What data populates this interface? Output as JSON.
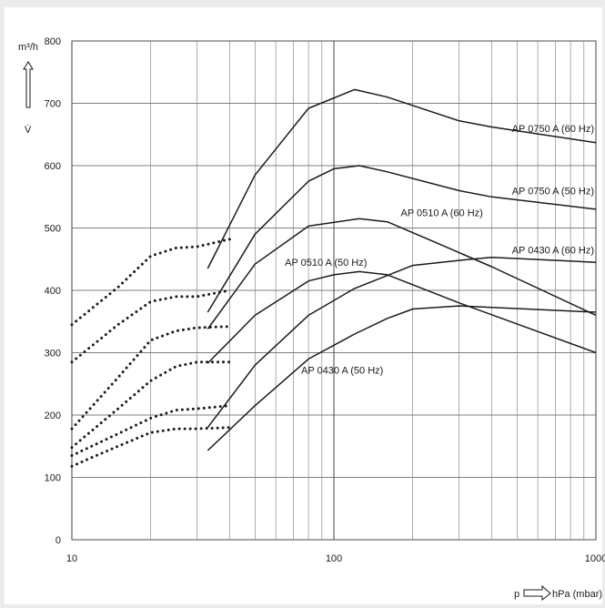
{
  "chart_data": {
    "type": "line",
    "xscale": "log",
    "xlim": [
      10,
      1000
    ],
    "ylim": [
      0,
      800
    ],
    "xticks": [
      10,
      100,
      1000
    ],
    "yticks": [
      0,
      100,
      200,
      300,
      400,
      500,
      600,
      700,
      800
    ],
    "xlabel": "p",
    "xunit": "hPa (mbar)",
    "ylabel": "V̇",
    "yunit": "m³/h",
    "grid": true,
    "series": [
      {
        "name": "AP 0750 A (60 Hz)",
        "points": [
          [
            33,
            435
          ],
          [
            50,
            585
          ],
          [
            80,
            692
          ],
          [
            120,
            722
          ],
          [
            160,
            710
          ],
          [
            300,
            672
          ],
          [
            400,
            662
          ],
          [
            1000,
            637
          ]
        ],
        "dotted": [
          [
            10,
            345
          ],
          [
            15,
            405
          ],
          [
            20,
            455
          ],
          [
            25,
            468
          ],
          [
            30,
            470
          ],
          [
            40,
            482
          ]
        ]
      },
      {
        "name": "AP 0750 A (50 Hz)",
        "points": [
          [
            33,
            365
          ],
          [
            50,
            490
          ],
          [
            80,
            575
          ],
          [
            100,
            595
          ],
          [
            125,
            600
          ],
          [
            160,
            590
          ],
          [
            300,
            560
          ],
          [
            400,
            550
          ],
          [
            1000,
            530
          ]
        ],
        "dotted": [
          [
            10,
            285
          ],
          [
            15,
            345
          ],
          [
            20,
            382
          ],
          [
            25,
            390
          ],
          [
            30,
            390
          ],
          [
            40,
            400
          ]
        ]
      },
      {
        "name": "AP 0510 A (60 Hz)",
        "points": [
          [
            33,
            338
          ],
          [
            50,
            442
          ],
          [
            80,
            503
          ],
          [
            125,
            515
          ],
          [
            160,
            510
          ],
          [
            250,
            475
          ],
          [
            400,
            438
          ],
          [
            1000,
            360
          ]
        ],
        "dotted": [
          [
            10,
            178
          ],
          [
            15,
            260
          ],
          [
            20,
            320
          ],
          [
            25,
            335
          ],
          [
            30,
            340
          ],
          [
            40,
            342
          ]
        ]
      },
      {
        "name": "AP 0510 A (50 Hz)",
        "points": [
          [
            33,
            283
          ],
          [
            50,
            360
          ],
          [
            80,
            415
          ],
          [
            100,
            425
          ],
          [
            125,
            430
          ],
          [
            160,
            425
          ],
          [
            300,
            380
          ],
          [
            1000,
            300
          ]
        ],
        "dotted": [
          [
            10,
            148
          ],
          [
            15,
            210
          ],
          [
            20,
            255
          ],
          [
            25,
            278
          ],
          [
            30,
            285
          ],
          [
            40,
            285
          ]
        ]
      },
      {
        "name": "AP 0430 A (60 Hz)",
        "points": [
          [
            33,
            180
          ],
          [
            50,
            280
          ],
          [
            80,
            360
          ],
          [
            120,
            403
          ],
          [
            200,
            440
          ],
          [
            300,
            448
          ],
          [
            400,
            453
          ],
          [
            1000,
            445
          ]
        ],
        "dotted": [
          [
            10,
            135
          ],
          [
            15,
            170
          ],
          [
            20,
            195
          ],
          [
            25,
            208
          ],
          [
            30,
            210
          ],
          [
            40,
            215
          ]
        ]
      },
      {
        "name": "AP 0430 A (50 Hz)",
        "points": [
          [
            33,
            143
          ],
          [
            50,
            215
          ],
          [
            80,
            290
          ],
          [
            120,
            330
          ],
          [
            160,
            355
          ],
          [
            200,
            370
          ],
          [
            300,
            375
          ],
          [
            1000,
            365
          ]
        ],
        "dotted": [
          [
            10,
            118
          ],
          [
            15,
            150
          ],
          [
            20,
            172
          ],
          [
            25,
            178
          ],
          [
            30,
            178
          ],
          [
            40,
            180
          ]
        ]
      }
    ],
    "labels": [
      {
        "text": "AP 0750 A (60 Hz)",
        "x": 1000,
        "y": 660,
        "anchor": "end"
      },
      {
        "text": "AP 0750 A (50 Hz)",
        "x": 1000,
        "y": 560,
        "anchor": "end"
      },
      {
        "text": "AP 0510 A (60 Hz)",
        "x": 180,
        "y": 525,
        "anchor": "start"
      },
      {
        "text": "AP 0430 A (60 Hz)",
        "x": 1000,
        "y": 465,
        "anchor": "end"
      },
      {
        "text": "AP 0510 A (50 Hz)",
        "x": 65,
        "y": 445,
        "anchor": "start"
      },
      {
        "text": "AP 0430 A (50 Hz)",
        "x": 75,
        "y": 272,
        "anchor": "start"
      }
    ]
  }
}
